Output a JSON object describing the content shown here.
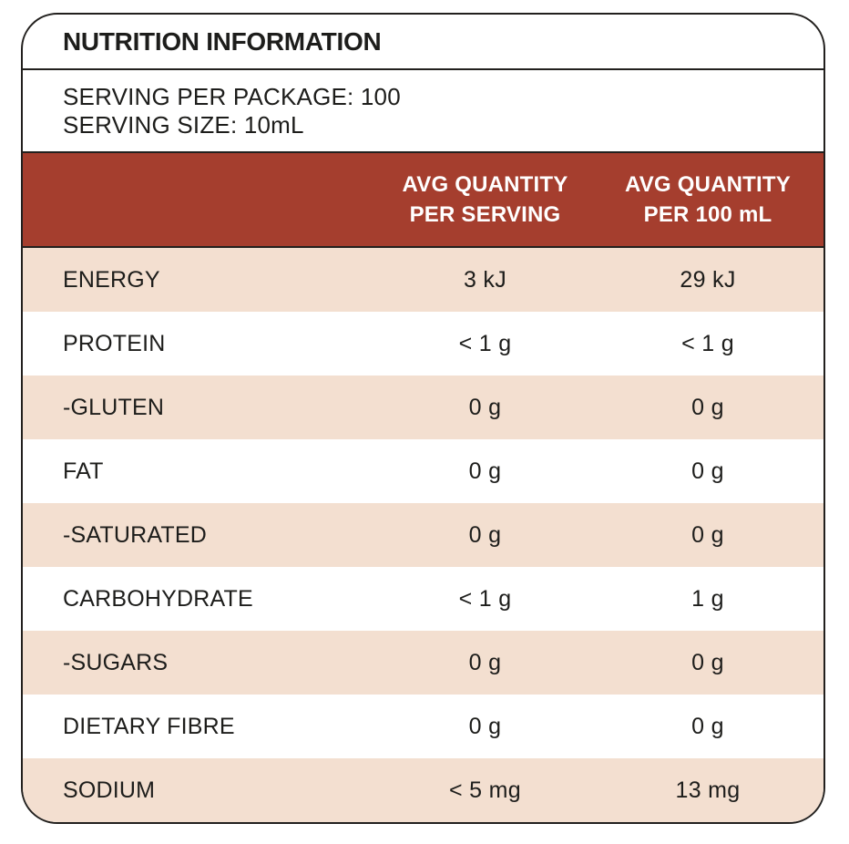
{
  "title": "NUTRITION INFORMATION",
  "serving_info": {
    "per_package": "SERVING PER PACKAGE: 100",
    "size": "SERVING SIZE: 10mL"
  },
  "columns": {
    "per_serving": {
      "line1": "AVG QUANTITY",
      "line2": "PER SERVING"
    },
    "per_100ml": {
      "line1": "AVG QUANTITY",
      "line2": "PER 100 mL"
    }
  },
  "rows": [
    {
      "label": "ENERGY",
      "per_serving": "3 kJ",
      "per_100ml": "29 kJ"
    },
    {
      "label": "PROTEIN",
      "per_serving": "< 1 g",
      "per_100ml": "< 1 g"
    },
    {
      "label": "-GLUTEN",
      "per_serving": "0 g",
      "per_100ml": "0 g"
    },
    {
      "label": "FAT",
      "per_serving": "0 g",
      "per_100ml": "0 g"
    },
    {
      "label": "-SATURATED",
      "per_serving": "0 g",
      "per_100ml": "0 g"
    },
    {
      "label": "CARBOHYDRATE",
      "per_serving": "< 1 g",
      "per_100ml": "1 g"
    },
    {
      "label": "-SUGARS",
      "per_serving": "0 g",
      "per_100ml": "0 g"
    },
    {
      "label": "DIETARY FIBRE",
      "per_serving": "0 g",
      "per_100ml": "0 g"
    },
    {
      "label": "SODIUM",
      "per_serving": "< 5 mg",
      "per_100ml": "13 mg"
    }
  ],
  "colors": {
    "header_bg": "#A53E2E",
    "header_text": "#FFFFFF",
    "row_alt_bg": "#F3DFD0",
    "border": "#22201E",
    "text": "#1D1D1B"
  }
}
